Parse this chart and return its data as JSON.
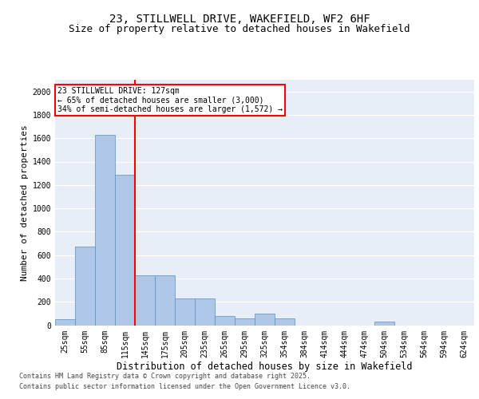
{
  "title_line1": "23, STILLWELL DRIVE, WAKEFIELD, WF2 6HF",
  "title_line2": "Size of property relative to detached houses in Wakefield",
  "xlabel": "Distribution of detached houses by size in Wakefield",
  "ylabel": "Number of detached properties",
  "categories": [
    "25sqm",
    "55sqm",
    "85sqm",
    "115sqm",
    "145sqm",
    "175sqm",
    "205sqm",
    "235sqm",
    "265sqm",
    "295sqm",
    "325sqm",
    "354sqm",
    "384sqm",
    "414sqm",
    "444sqm",
    "474sqm",
    "504sqm",
    "534sqm",
    "564sqm",
    "594sqm",
    "624sqm"
  ],
  "values": [
    50,
    670,
    1630,
    1290,
    430,
    430,
    230,
    230,
    80,
    55,
    100,
    55,
    0,
    0,
    0,
    0,
    30,
    0,
    0,
    0,
    0
  ],
  "bar_color": "#aec6e8",
  "bar_edge_color": "#5a8fc0",
  "background_color": "#e8eef7",
  "vline_color": "red",
  "vline_pos": 3.5,
  "annotation_box_text": "23 STILLWELL DRIVE: 127sqm\n← 65% of detached houses are smaller (3,000)\n34% of semi-detached houses are larger (1,572) →",
  "ylim": [
    0,
    2100
  ],
  "yticks": [
    0,
    200,
    400,
    600,
    800,
    1000,
    1200,
    1400,
    1600,
    1800,
    2000
  ],
  "footer_line1": "Contains HM Land Registry data © Crown copyright and database right 2025.",
  "footer_line2": "Contains public sector information licensed under the Open Government Licence v3.0.",
  "title_fontsize": 10,
  "subtitle_fontsize": 9,
  "axis_label_fontsize": 8,
  "tick_fontsize": 7,
  "annotation_fontsize": 7,
  "footer_fontsize": 6
}
